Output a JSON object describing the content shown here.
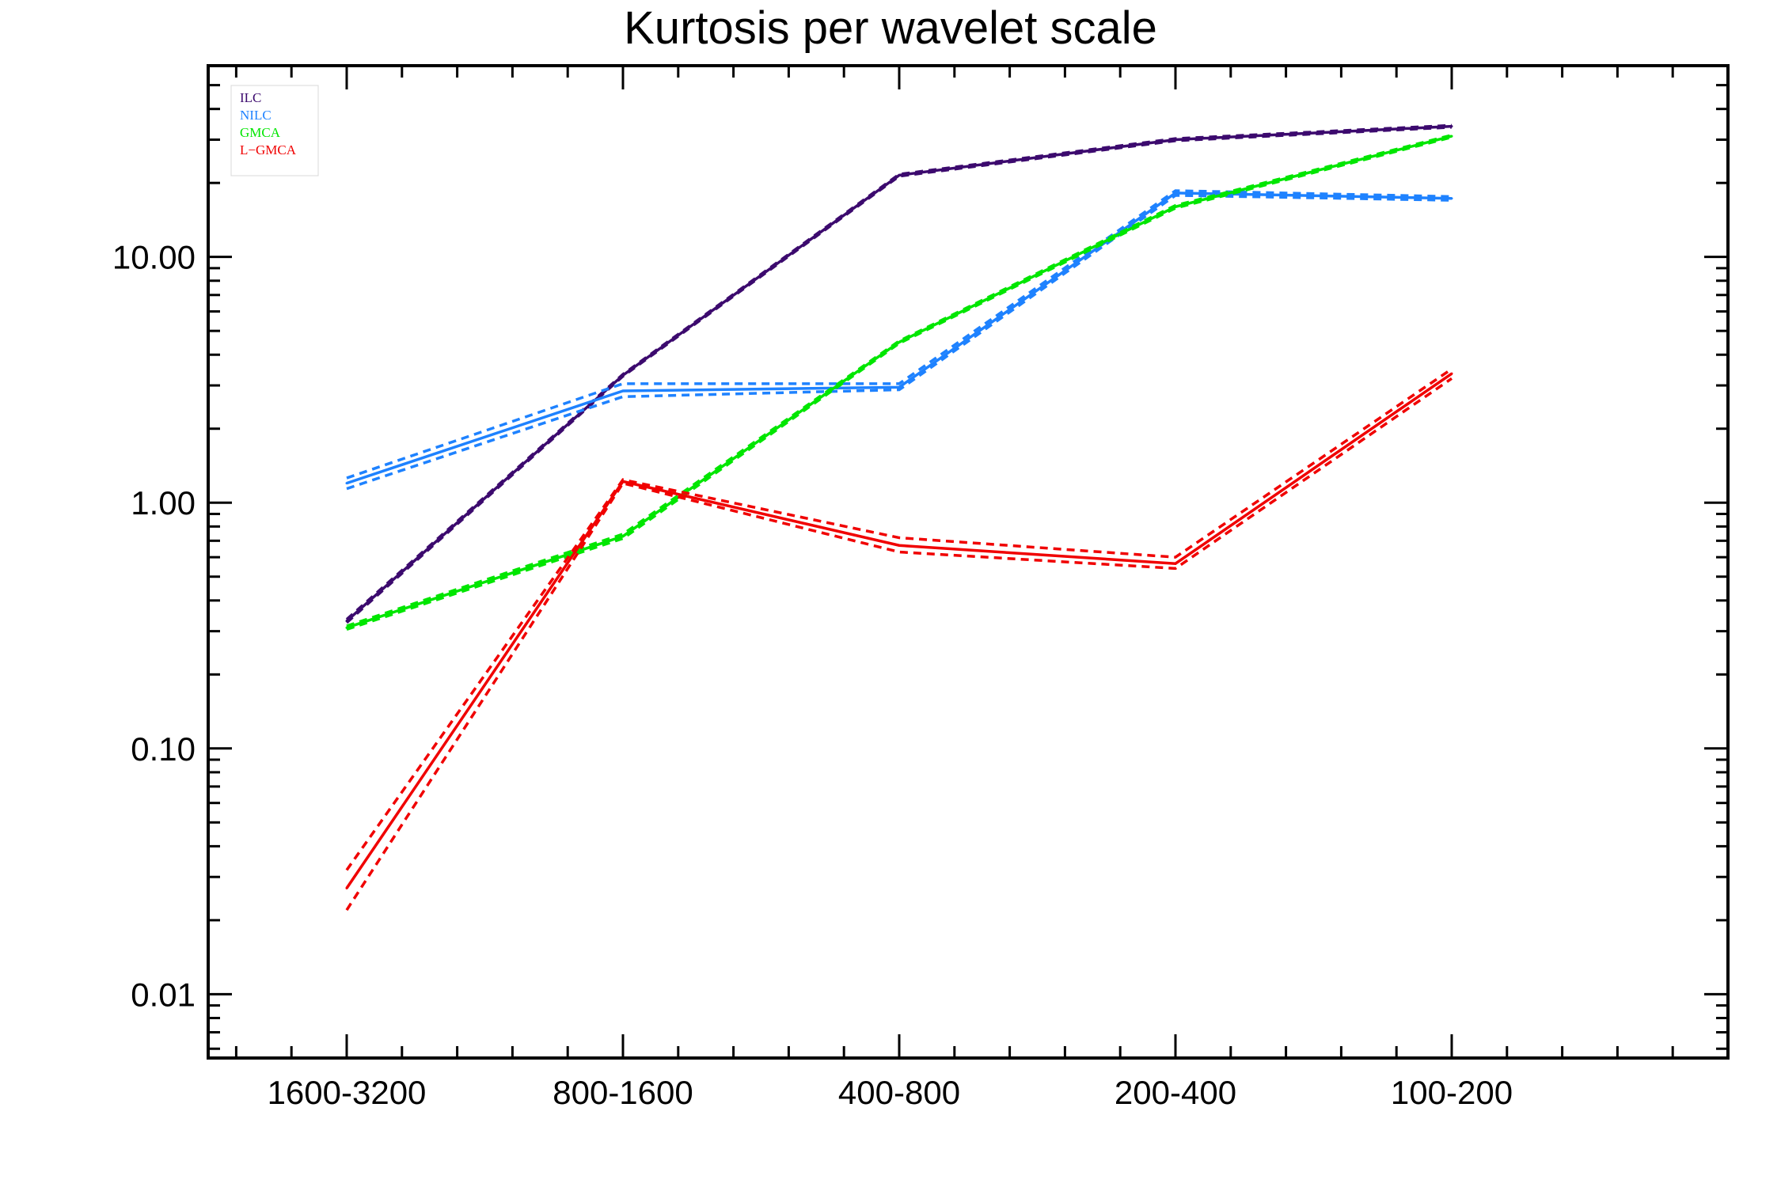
{
  "chart_data": {
    "type": "line",
    "title": "Kurtosis per wavelet scale",
    "xlabel": "",
    "ylabel": "",
    "categories": [
      "1600-3200",
      "800-1600",
      "400-800",
      "200-400",
      "100-200"
    ],
    "y_scale": "log",
    "ylim": [
      0.0055,
      60
    ],
    "y_tick_labels": [
      "0.01",
      "0.10",
      "1.00",
      "10.00"
    ],
    "y_tick_values": [
      0.01,
      0.1,
      1,
      10
    ],
    "legend_position": "top-left",
    "grid": false,
    "series": [
      {
        "name": "ILC",
        "color": "#3c0a6e",
        "values": [
          0.33,
          3.3,
          21.5,
          30,
          34
        ],
        "upper": [
          0.335,
          3.33,
          21.7,
          30.3,
          34.3
        ],
        "lower": [
          0.325,
          3.27,
          21.3,
          29.7,
          33.7
        ]
      },
      {
        "name": "NILC",
        "color": "#1e82ff",
        "values": [
          1.2,
          2.85,
          2.95,
          18.2,
          17.3
        ],
        "upper": [
          1.26,
          3.05,
          3.05,
          18.6,
          17.6
        ],
        "lower": [
          1.14,
          2.7,
          2.88,
          17.8,
          17.0
        ]
      },
      {
        "name": "GMCA",
        "color": "#00e600",
        "values": [
          0.31,
          0.73,
          4.5,
          16.0,
          31.0
        ],
        "upper": [
          0.315,
          0.745,
          4.55,
          16.2,
          31.3
        ],
        "lower": [
          0.305,
          0.715,
          4.45,
          15.8,
          30.7
        ]
      },
      {
        "name": "L−GMCA",
        "color": "#f00000",
        "values": [
          0.027,
          1.22,
          0.67,
          0.565,
          3.35
        ],
        "upper": [
          0.032,
          1.24,
          0.72,
          0.6,
          3.5
        ],
        "lower": [
          0.022,
          1.2,
          0.63,
          0.54,
          3.2
        ]
      }
    ]
  }
}
